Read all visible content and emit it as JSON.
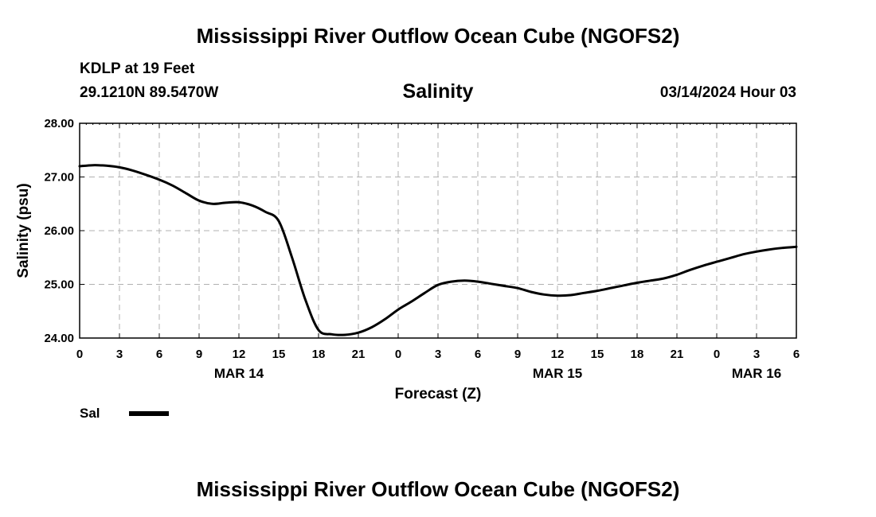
{
  "header": {
    "title": "Mississippi River Outflow Ocean Cube (NGOFS2)",
    "station": "KDLP at 19 Feet",
    "coordinates": "29.1210N  89.5470W",
    "datetime": "03/14/2024 Hour 03"
  },
  "footer": {
    "title": "Mississippi River Outflow Ocean Cube (NGOFS2)"
  },
  "chart_data": {
    "type": "line",
    "title": "Salinity",
    "xlabel": "Forecast (Z)",
    "ylabel": "Salinity (psu)",
    "xlim": [
      0,
      54
    ],
    "ylim": [
      24,
      28
    ],
    "x_tick_values": [
      0,
      3,
      6,
      9,
      12,
      15,
      18,
      21,
      24,
      27,
      30,
      33,
      36,
      39,
      42,
      45,
      48,
      51,
      54
    ],
    "x_tick_labels": [
      "0",
      "3",
      "6",
      "9",
      "12",
      "15",
      "18",
      "21",
      "0",
      "3",
      "6",
      "9",
      "12",
      "15",
      "18",
      "21",
      "0",
      "3",
      "6"
    ],
    "y_tick_values": [
      24,
      25,
      26,
      27,
      28
    ],
    "y_tick_labels": [
      "24.00",
      "25.00",
      "26.00",
      "27.00",
      "28.00"
    ],
    "date_labels": [
      {
        "x": 12,
        "label": "MAR 14"
      },
      {
        "x": 36,
        "label": "MAR 15"
      },
      {
        "x": 51,
        "label": "MAR 16"
      }
    ],
    "grid": true,
    "legend": {
      "position": "bottom-left",
      "entries": [
        "Sal"
      ]
    },
    "series": [
      {
        "name": "Sal",
        "color": "#000000",
        "x": [
          0,
          1,
          2,
          3,
          4,
          5,
          6,
          7,
          8,
          9,
          10,
          11,
          12,
          13,
          14,
          15,
          16,
          17,
          18,
          19,
          20,
          21,
          22,
          23,
          24,
          25,
          26,
          27,
          28,
          29,
          30,
          31,
          32,
          33,
          34,
          35,
          36,
          37,
          38,
          39,
          40,
          41,
          42,
          43,
          44,
          45,
          46,
          47,
          48,
          49,
          50,
          51,
          52,
          53,
          54
        ],
        "values": [
          27.2,
          27.22,
          27.21,
          27.18,
          27.12,
          27.04,
          26.95,
          26.84,
          26.7,
          26.56,
          26.5,
          26.52,
          26.53,
          26.47,
          26.35,
          26.18,
          25.5,
          24.72,
          24.15,
          24.07,
          24.06,
          24.1,
          24.2,
          24.35,
          24.53,
          24.68,
          24.84,
          24.99,
          25.05,
          25.07,
          25.05,
          25.01,
          24.97,
          24.93,
          24.86,
          24.81,
          24.79,
          24.8,
          24.84,
          24.88,
          24.93,
          24.98,
          25.03,
          25.07,
          25.11,
          25.18,
          25.27,
          25.35,
          25.42,
          25.49,
          25.56,
          25.61,
          25.65,
          25.68,
          25.7
        ]
      }
    ]
  }
}
